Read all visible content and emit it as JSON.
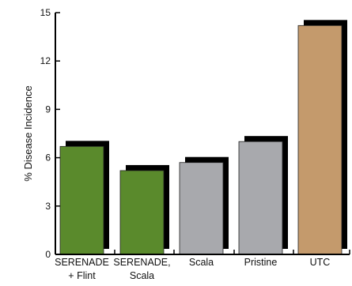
{
  "chart_data": {
    "type": "bar",
    "categories": [
      [
        "SERENADE",
        "+ Flint"
      ],
      [
        "SERENADE,",
        "Scala"
      ],
      [
        "Scala"
      ],
      [
        "Pristine"
      ],
      [
        "UTC"
      ]
    ],
    "values": [
      6.7,
      5.2,
      5.7,
      7.0,
      14.2
    ],
    "bar_colors": [
      "#5a8a2c",
      "#5a8a2c",
      "#a8a9ad",
      "#a8a9ad",
      "#c49a6c"
    ],
    "shadow_color": "#000000",
    "ylabel": "% Disease Incidence",
    "xlabel": "",
    "ylim": [
      0,
      15
    ],
    "yticks": [
      0,
      3,
      6,
      9,
      12,
      15
    ],
    "grid": false
  }
}
